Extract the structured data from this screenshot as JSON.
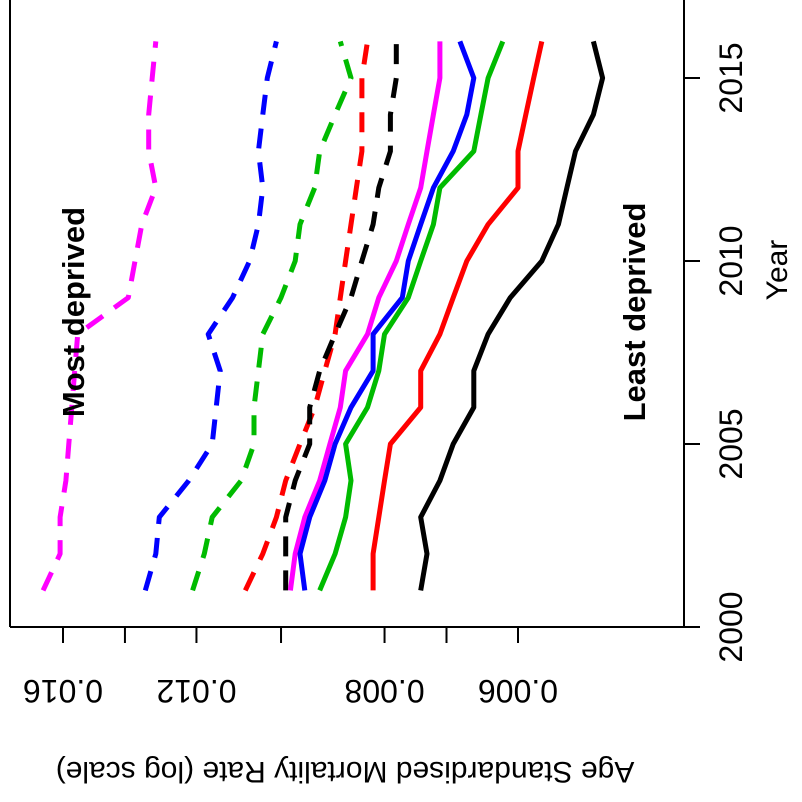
{
  "chart_data": {
    "type": "line",
    "title": "",
    "xlabel": "Year",
    "ylabel": "Age Standardised Mortality Rate (log scale)",
    "y_scale": "log",
    "xlim": [
      2000,
      2016.5
    ],
    "ylim": [
      0.005,
      0.0167
    ],
    "x_ticks": [
      "2000",
      "2005",
      "2010",
      "2015"
    ],
    "y_ticks": [
      "0.006",
      "0.008",
      "0.012",
      "0.016"
    ],
    "annotations": [
      "Most deprived",
      "Least deprived"
    ],
    "grid": false,
    "legend": "none",
    "x": [
      2001,
      2002,
      2003,
      2004,
      2005,
      2006,
      2007,
      2008,
      2009,
      2010,
      2011,
      2012,
      2013,
      2014,
      2015,
      2016
    ],
    "series": [
      {
        "color": "#ff00ff",
        "line": "dashed",
        "values": [
          0.0167,
          0.0161,
          0.0161,
          0.0159,
          0.0158,
          0.0157,
          0.0156,
          0.0155,
          0.0139,
          0.0137,
          0.0135,
          0.0131,
          0.0133,
          0.0133,
          0.0132,
          0.0131
        ]
      },
      {
        "color": "#0000ff",
        "line": "dashed",
        "values": [
          0.0134,
          0.0131,
          0.013,
          0.0122,
          0.0116,
          0.0115,
          0.0114,
          0.0117,
          0.0111,
          0.0107,
          0.0105,
          0.0104,
          0.0105,
          0.0104,
          0.0103,
          0.0101
        ]
      },
      {
        "color": "#00bb00",
        "line": "dashed",
        "values": [
          0.0121,
          0.0118,
          0.0116,
          0.0109,
          0.0106,
          0.0106,
          0.0105,
          0.0104,
          0.01,
          0.0097,
          0.0096,
          0.0093,
          0.0092,
          0.0089,
          0.0086,
          0.0088
        ]
      },
      {
        "color": "#ff0000",
        "line": "dashed",
        "values": [
          0.0108,
          0.0104,
          0.0101,
          0.0099,
          0.0096,
          0.0093,
          0.0091,
          0.0089,
          0.0088,
          0.0087,
          0.0086,
          0.0085,
          0.0084,
          0.0084,
          0.0084,
          0.0083
        ]
      },
      {
        "color": "#000000",
        "line": "dashed",
        "values": [
          0.0099,
          0.0099,
          0.0099,
          0.0097,
          0.0094,
          0.0094,
          0.0092,
          0.0089,
          0.0086,
          0.0084,
          0.0082,
          0.0081,
          0.0079,
          0.0079,
          0.0078,
          0.0078
        ]
      },
      {
        "color": "#ff00ff",
        "line": "solid",
        "values": [
          0.0098,
          0.0097,
          0.0095,
          0.0092,
          0.009,
          0.0088,
          0.0087,
          0.0083,
          0.0081,
          0.0078,
          0.0076,
          0.0074,
          0.0073,
          0.0072,
          0.0071,
          0.0071
        ]
      },
      {
        "color": "#0000ff",
        "line": "solid",
        "values": [
          0.0095,
          0.0096,
          0.0094,
          0.0091,
          0.0089,
          0.0086,
          0.0082,
          0.0082,
          0.0077,
          0.0076,
          0.0074,
          0.0072,
          0.0069,
          0.0067,
          0.0066,
          0.0068
        ]
      },
      {
        "color": "#00bb00",
        "line": "solid",
        "values": [
          0.0092,
          0.0089,
          0.0087,
          0.0086,
          0.0087,
          0.0083,
          0.0081,
          0.008,
          0.0076,
          0.0074,
          0.0072,
          0.0071,
          0.0066,
          0.0065,
          0.0064,
          0.0062
        ]
      },
      {
        "color": "#ff0000",
        "line": "solid",
        "values": [
          0.0082,
          0.0082,
          0.0081,
          0.008,
          0.0079,
          0.0074,
          0.0074,
          0.0071,
          0.0069,
          0.0067,
          0.0064,
          0.006,
          0.006,
          0.0059,
          0.0058,
          0.0057
        ]
      },
      {
        "color": "#000000",
        "line": "solid",
        "values": [
          0.0074,
          0.0073,
          0.0074,
          0.0071,
          0.0069,
          0.0066,
          0.0066,
          0.0064,
          0.0061,
          0.0057,
          0.0055,
          0.0054,
          0.0053,
          0.0051,
          0.005,
          0.0051
        ]
      }
    ]
  }
}
